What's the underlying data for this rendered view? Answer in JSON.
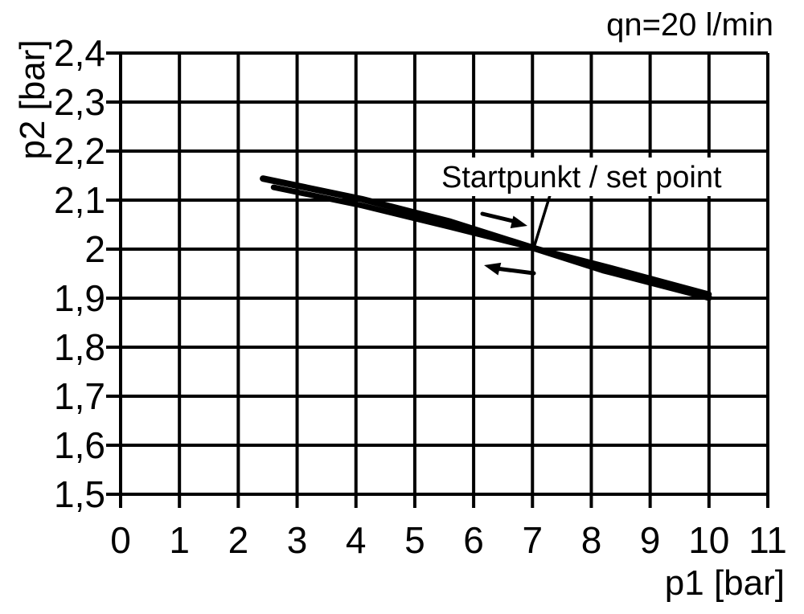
{
  "chart_data": {
    "type": "line",
    "title": "qn=20 l/min",
    "xlabel": "p1 [bar]",
    "ylabel": "p2 [bar]",
    "xlim": [
      0,
      11
    ],
    "ylim": [
      1.5,
      2.4
    ],
    "grid": true,
    "x_tick_labels": [
      "0",
      "1",
      "2",
      "3",
      "4",
      "5",
      "6",
      "7",
      "8",
      "9",
      "10",
      "11"
    ],
    "y_tick_labels": [
      "2,4",
      "2,3",
      "2,2",
      "2,1",
      "2",
      "1,9",
      "1,8",
      "1,7",
      "1,6",
      "1,5"
    ],
    "annotation": "Startpunkt / set point",
    "set_point": {
      "p1": 7.0,
      "p2": 2.0
    },
    "series": [
      {
        "name": "forward stroke (arrow pointing right)",
        "direction": "right",
        "points": [
          [
            2.42,
            2.144
          ],
          [
            4.1,
            2.102
          ],
          [
            5.6,
            2.056
          ],
          [
            7.0,
            2.003
          ],
          [
            8.2,
            1.957
          ],
          [
            10.0,
            1.901
          ]
        ]
      },
      {
        "name": "return stroke (arrow pointing left)",
        "direction": "left",
        "points": [
          [
            10.0,
            1.908
          ],
          [
            8.2,
            1.966
          ],
          [
            7.0,
            2.003
          ],
          [
            5.6,
            2.045
          ],
          [
            4.1,
            2.089
          ],
          [
            2.6,
            2.126
          ]
        ]
      }
    ],
    "colors": {
      "foreground": "#000000",
      "background": "#ffffff"
    }
  }
}
